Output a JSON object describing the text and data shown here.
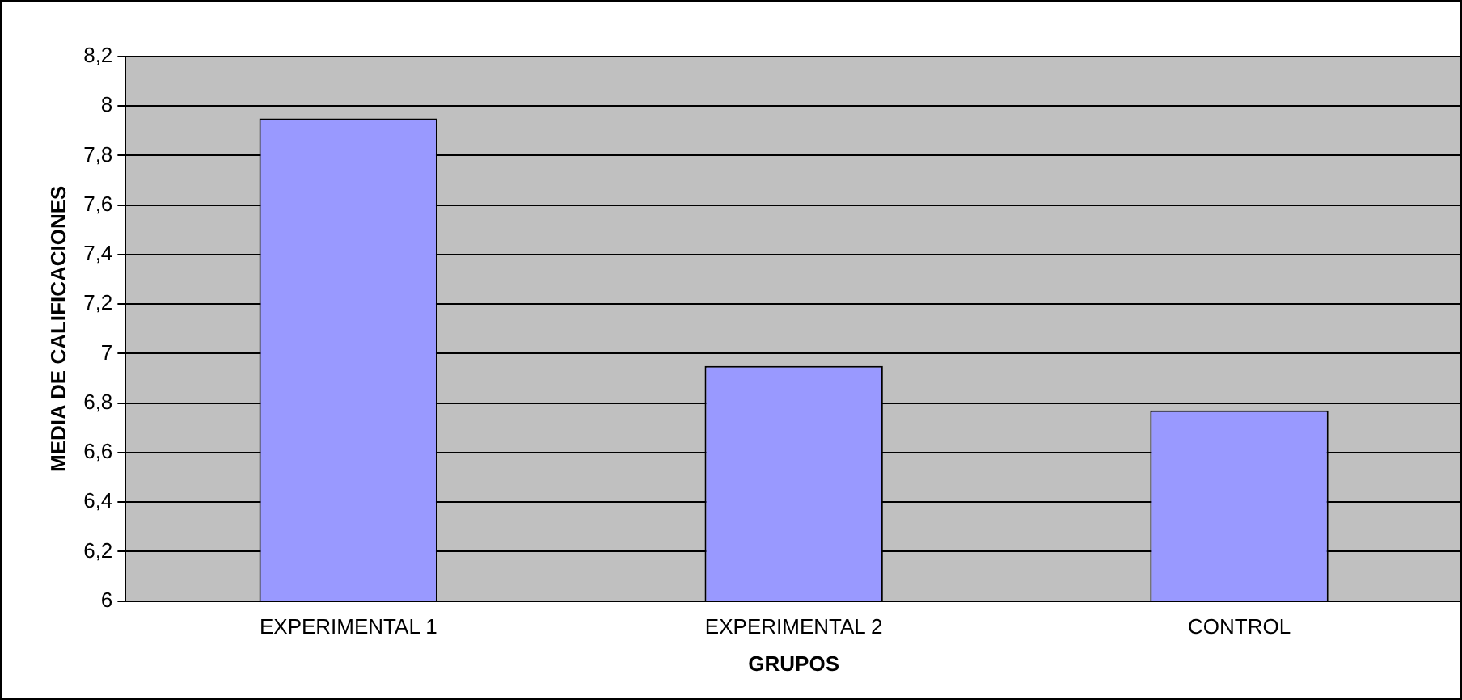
{
  "chart_data": {
    "type": "bar",
    "xlabel": "GRUPOS",
    "ylabel": "MEDIA DE CALIFICACIONES",
    "categories": [
      "EXPERIMENTAL 1",
      "EXPERIMENTAL 2",
      "CONTROL"
    ],
    "values": [
      7.95,
      6.95,
      6.77
    ],
    "color": "#9999ff",
    "ylim": [
      6,
      8.2
    ],
    "yticks": [
      {
        "value": 6,
        "label": "6"
      },
      {
        "value": 6.2,
        "label": "6,2"
      },
      {
        "value": 6.4,
        "label": "6,4"
      },
      {
        "value": 6.6,
        "label": "6,6"
      },
      {
        "value": 6.8,
        "label": "6,8"
      },
      {
        "value": 7,
        "label": "7"
      },
      {
        "value": 7.2,
        "label": "7,2"
      },
      {
        "value": 7.4,
        "label": "7,4"
      },
      {
        "value": 7.6,
        "label": "7,6"
      },
      {
        "value": 7.8,
        "label": "7,8"
      },
      {
        "value": 8,
        "label": "8"
      },
      {
        "value": 8.2,
        "label": "8,2"
      }
    ],
    "grid": "y",
    "legend": false
  }
}
